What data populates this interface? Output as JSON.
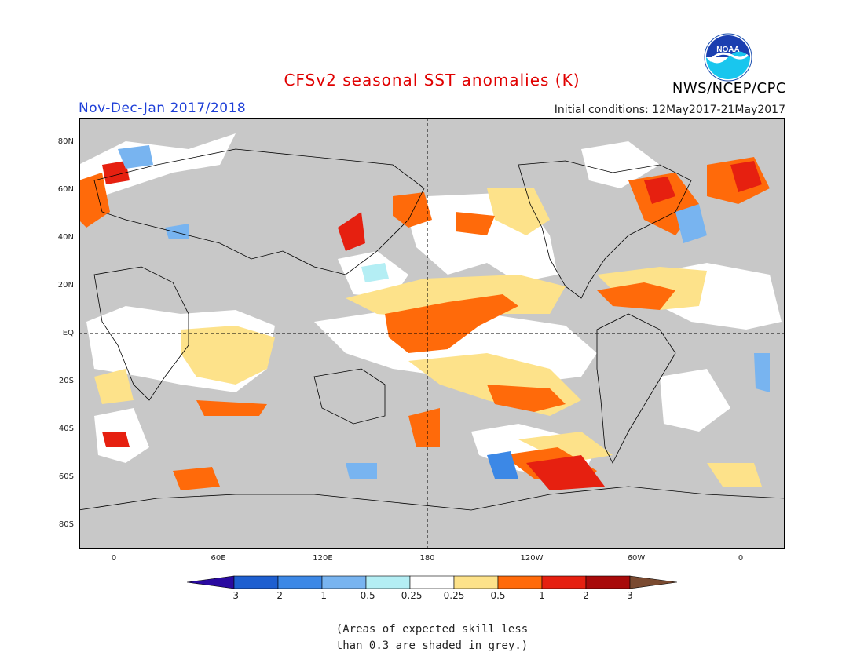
{
  "title": "CFSv2 seasonal SST anomalies (K)",
  "season": "Nov-Dec-Jan 2017/2018",
  "initial_conditions": "Initial conditions: 12May2017-21May2017",
  "agency": "NWS/NCEP/CPC",
  "logo_text": "NOAA",
  "y_ticks": [
    "80N",
    "60N",
    "40N",
    "20N",
    "EQ",
    "20S",
    "40S",
    "60S",
    "80S"
  ],
  "x_ticks": [
    "0",
    "60E",
    "120E",
    "180",
    "120W",
    "60W",
    "0"
  ],
  "colorbar": {
    "labels": [
      "-3",
      "-2",
      "-1",
      "-0.5",
      "-0.25",
      "0.25",
      "0.5",
      "1",
      "2",
      "3"
    ],
    "colors": [
      "#2a0aa0",
      "#1e5fd0",
      "#3c88e6",
      "#78b4f0",
      "#b4eef4",
      "#ffffff",
      "#fde28a",
      "#ff6a0a",
      "#e62010",
      "#a80a0a",
      "#7a4a30"
    ]
  },
  "land_color": "#c8c8c8",
  "note_lines": [
    "(Areas of expected skill less",
    "than 0.3 are shaded in grey.)"
  ]
}
